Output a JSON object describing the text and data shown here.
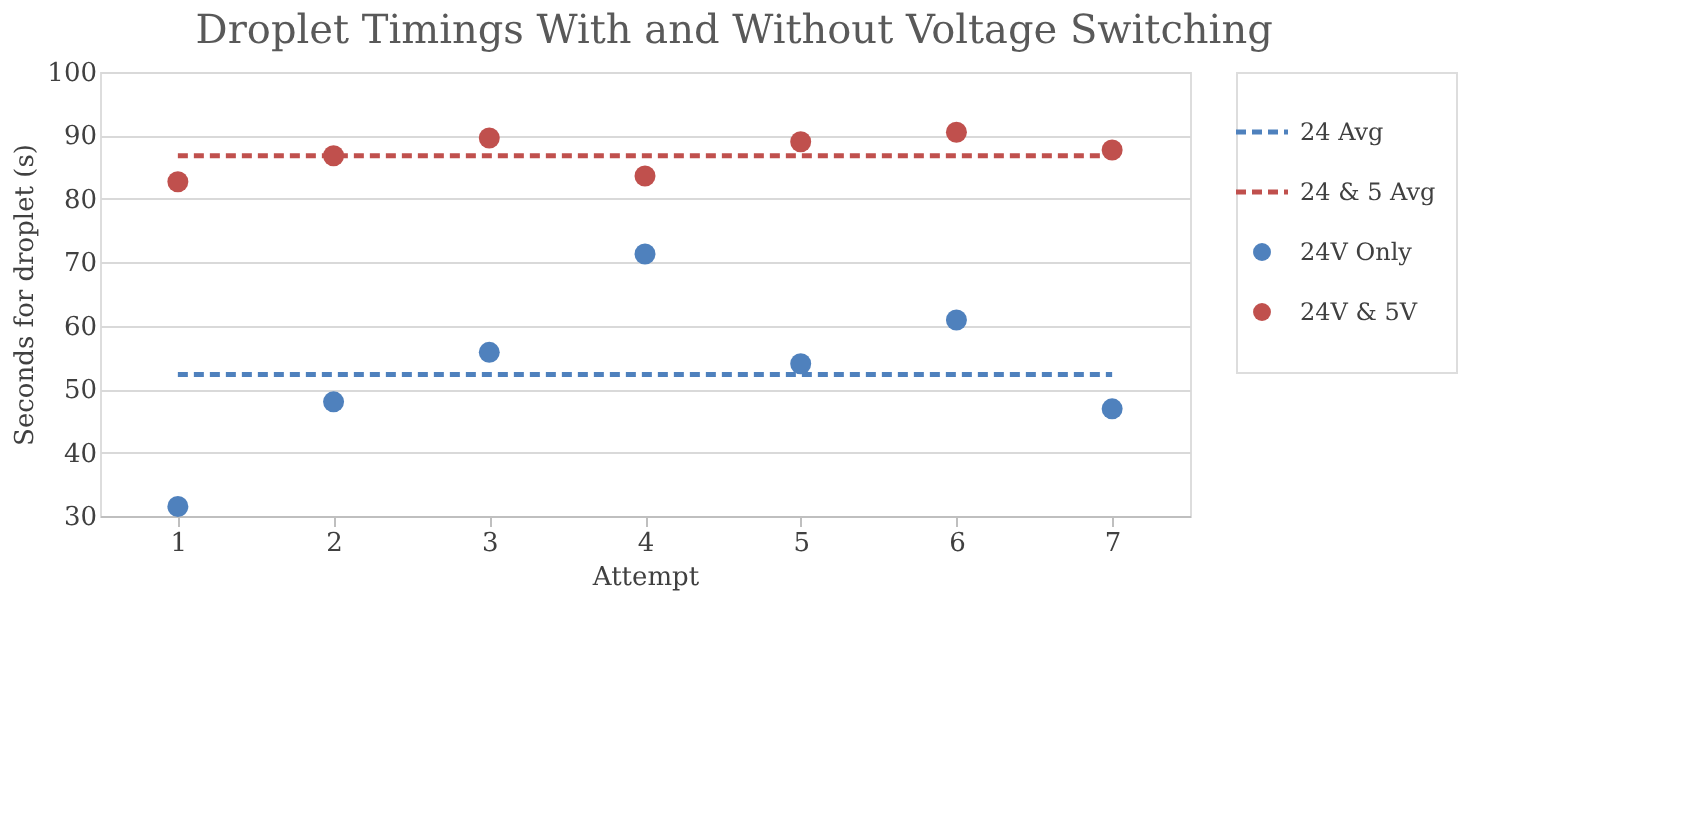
{
  "chart_data": {
    "type": "scatter",
    "title": "Droplet Timings With and Without Voltage Switching",
    "xlabel": "Attempt",
    "ylabel": "Seconds for droplet (s)",
    "categories": [
      "1",
      "2",
      "3",
      "4",
      "5",
      "6",
      "7"
    ],
    "series": [
      {
        "name": "24 Avg",
        "type": "line",
        "marker": "none",
        "line_style": "dashed",
        "color": "#4f81bd",
        "values": [
          52.3,
          52.3,
          52.3,
          52.3,
          52.3,
          52.3,
          52.3
        ]
      },
      {
        "name": "24 & 5 Avg",
        "type": "line",
        "marker": "none",
        "line_style": "dashed",
        "color": "#c0504d",
        "values": [
          86.8,
          86.8,
          86.8,
          86.8,
          86.8,
          86.8,
          86.8
        ]
      },
      {
        "name": "24V Only",
        "color": "#4f81bd",
        "values": [
          31.5,
          48,
          55.8,
          71.3,
          54,
          60.9,
          46.9
        ]
      },
      {
        "name": "24V & 5V",
        "color": "#c0504d",
        "values": [
          82.7,
          86.8,
          89.6,
          83.6,
          89,
          90.5,
          87.7
        ]
      }
    ],
    "marker": "circle",
    "ylim": [
      30,
      100
    ],
    "yticks": [
      30,
      40,
      50,
      60,
      70,
      80,
      90,
      100
    ],
    "grid": "y",
    "legend": "right"
  }
}
